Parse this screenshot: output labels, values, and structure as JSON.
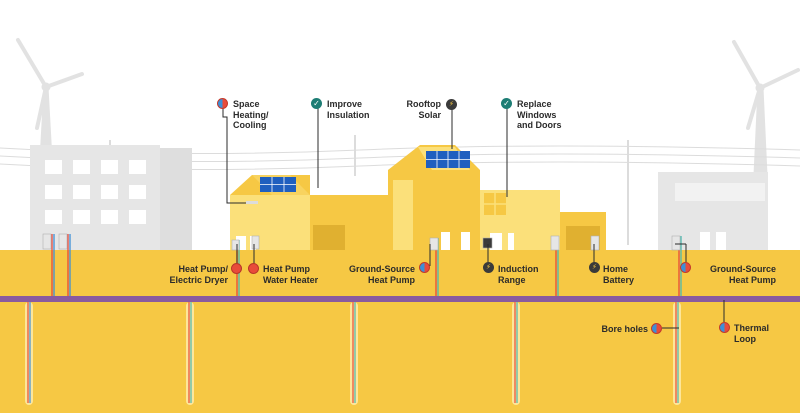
{
  "labels": {
    "space_heating": "Space\nHeating/\nCooling",
    "improve_insulation": "Improve\nInsulation",
    "rooftop_solar": "Rooftop\nSolar",
    "replace_windows": "Replace\nWindows\nand Doors",
    "heat_pump_dryer": "Heat Pump/\nElectric Dryer",
    "heat_pump_water_heater": "Heat Pump\nWater Heater",
    "ground_source_left": "Ground-Source\nHeat Pump",
    "induction_range": "Induction\nRange",
    "home_battery": "Home\nBattery",
    "ground_source_right": "Ground-Source\nHeat Pump",
    "bore_holes": "Bore holes",
    "thermal_loop": "Thermal\nLoop"
  },
  "icons": {
    "heat": "hot-cold-icon",
    "hot": "flame-icon",
    "check": "check-icon",
    "bolt": "lightning-bolt-icon"
  },
  "glyphs": {
    "check": "✓",
    "bolt": "⚡"
  },
  "colors": {
    "ground": "#f6c844",
    "ground_light": "#fde69a",
    "thermal_loop": "#8a5a9f",
    "house_main": "#f6c844",
    "house_light": "#fbe07a",
    "solar_panel": "#1f5fbf",
    "background_building": "#e6e6e6",
    "sky_turbine": "#dcdcdc",
    "pipe_red": "#e84b3a",
    "pipe_blue": "#3d8fd6",
    "pipe_teal": "#4cb8b0"
  }
}
